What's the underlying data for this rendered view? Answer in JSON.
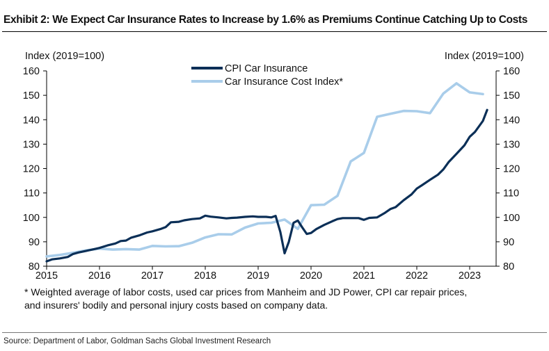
{
  "title": "Exhibit 2: We Expect Car Insurance Rates to Increase by 1.6% as Premiums Continue Catching Up to Costs",
  "footnote": {
    "line1": "* Weighted average of labor costs, used car prices from Manheim and JD Power, CPI car repair prices,",
    "line2": "and insurers' bodily and personal injury costs based on company data."
  },
  "source": "Source: Department of Labor, Goldman Sachs Global Investment Research",
  "colors": {
    "cpi": "#0b2f57",
    "cost": "#a9cdea"
  },
  "chart_data": {
    "type": "line",
    "ylabel_left": "Index (2019=100)",
    "ylabel_right": "Index (2019=100)",
    "ylim": [
      80,
      160
    ],
    "yticks": [
      80,
      90,
      100,
      110,
      120,
      130,
      140,
      150,
      160
    ],
    "xlim": [
      2015,
      2023.5
    ],
    "xticks": [
      2015,
      2016,
      2017,
      2018,
      2019,
      2020,
      2021,
      2022,
      2023
    ],
    "legend": "top-center",
    "grid": false,
    "series": [
      {
        "name": "CPI Car Insurance",
        "x": [
          2015.0,
          2015.1,
          2015.25,
          2015.4,
          2015.5,
          2015.6,
          2015.75,
          2015.9,
          2016.0,
          2016.15,
          2016.3,
          2016.4,
          2016.5,
          2016.6,
          2016.75,
          2016.9,
          2017.0,
          2017.15,
          2017.25,
          2017.35,
          2017.5,
          2017.6,
          2017.75,
          2017.9,
          2018.0,
          2018.1,
          2018.25,
          2018.4,
          2018.5,
          2018.6,
          2018.75,
          2018.9,
          2019.0,
          2019.15,
          2019.25,
          2019.33,
          2019.42,
          2019.5,
          2019.58,
          2019.67,
          2019.75,
          2019.83,
          2019.92,
          2020.0,
          2020.1,
          2020.25,
          2020.4,
          2020.5,
          2020.6,
          2020.75,
          2020.9,
          2021.0,
          2021.1,
          2021.25,
          2021.4,
          2021.5,
          2021.6,
          2021.75,
          2021.9,
          2022.0,
          2022.1,
          2022.25,
          2022.4,
          2022.5,
          2022.6,
          2022.75,
          2022.9,
          2023.0,
          2023.1,
          2023.25,
          2023.33
        ],
        "values": [
          82.0,
          82.8,
          83.2,
          83.8,
          85.0,
          85.6,
          86.3,
          87.0,
          87.5,
          88.5,
          89.3,
          90.3,
          90.5,
          91.7,
          92.6,
          93.8,
          94.3,
          95.2,
          96.0,
          98.0,
          98.2,
          98.8,
          99.3,
          99.6,
          100.7,
          100.3,
          100.0,
          99.6,
          99.8,
          99.9,
          100.2,
          100.4,
          100.2,
          100.2,
          100.0,
          100.6,
          94.0,
          85.3,
          90.0,
          97.8,
          98.7,
          96.0,
          93.2,
          93.6,
          95.2,
          96.9,
          98.4,
          99.3,
          99.7,
          99.7,
          99.7,
          99.0,
          99.8,
          100.0,
          101.9,
          103.4,
          104.2,
          107.0,
          109.4,
          111.8,
          113.2,
          115.4,
          117.5,
          119.6,
          122.6,
          126.0,
          129.5,
          133.0,
          135.0,
          139.5,
          144.0
        ]
      },
      {
        "name": "Car Insurance Cost Index*",
        "x": [
          2015.0,
          2015.25,
          2015.5,
          2015.75,
          2016.0,
          2016.25,
          2016.5,
          2016.75,
          2017.0,
          2017.25,
          2017.5,
          2017.75,
          2018.0,
          2018.25,
          2018.5,
          2018.75,
          2019.0,
          2019.25,
          2019.5,
          2019.75,
          2020.0,
          2020.25,
          2020.5,
          2020.75,
          2021.0,
          2021.25,
          2021.5,
          2021.75,
          2022.0,
          2022.25,
          2022.5,
          2022.75,
          2023.0,
          2023.25
        ],
        "values": [
          84.0,
          84.6,
          85.5,
          86.5,
          87.2,
          86.8,
          87.0,
          86.8,
          88.3,
          88.1,
          88.2,
          89.6,
          91.8,
          93.1,
          93.0,
          95.8,
          97.5,
          97.8,
          99.1,
          95.3,
          105.0,
          105.2,
          108.8,
          122.9,
          126.4,
          141.2,
          142.4,
          143.6,
          143.5,
          142.7,
          150.7,
          154.9,
          151.2,
          150.5
        ]
      }
    ]
  }
}
